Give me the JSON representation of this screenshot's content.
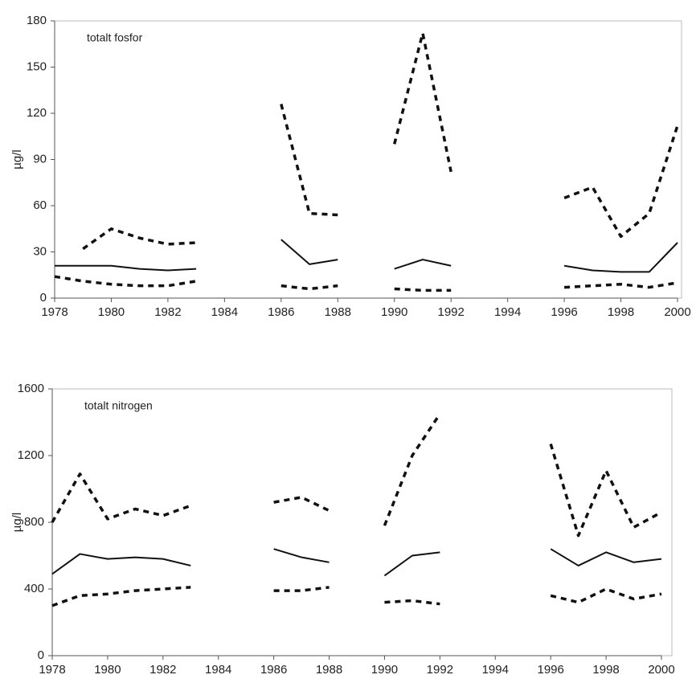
{
  "chart_data": [
    {
      "type": "line",
      "annotation": "totalt fosfor",
      "y_label": "µg/l",
      "x": [
        1978,
        1979,
        1980,
        1981,
        1982,
        1983,
        1984,
        1985,
        1986,
        1987,
        1988,
        1989,
        1990,
        1991,
        1992,
        1993,
        1994,
        1995,
        1996,
        1997,
        1998,
        1999,
        2000
      ],
      "xlim": [
        1978,
        2000
      ],
      "xticks": [
        1978,
        1980,
        1982,
        1984,
        1986,
        1988,
        1990,
        1992,
        1994,
        1996,
        1998,
        2000
      ],
      "ylim": [
        0,
        180
      ],
      "yticks": [
        0,
        30,
        60,
        90,
        120,
        150,
        180
      ],
      "series": [
        {
          "color": "#111",
          "dashed": true,
          "values": [
            null,
            32,
            45,
            39,
            35,
            36,
            null,
            null,
            126,
            55,
            54,
            null,
            100,
            172,
            82,
            null,
            null,
            null,
            65,
            72,
            40,
            55,
            112
          ]
        },
        {
          "color": "#111",
          "dashed": false,
          "values": [
            21,
            21,
            21,
            19,
            18,
            19,
            null,
            null,
            38,
            22,
            25,
            null,
            19,
            25,
            21,
            null,
            null,
            null,
            21,
            18,
            17,
            17,
            36
          ]
        },
        {
          "color": "#111",
          "dashed": true,
          "values": [
            14,
            11,
            9,
            8,
            8,
            11,
            null,
            null,
            8,
            6,
            8,
            null,
            6,
            5,
            5,
            null,
            null,
            null,
            7,
            8,
            9,
            7,
            10
          ]
        }
      ]
    },
    {
      "type": "line",
      "annotation": "totalt nitrogen",
      "y_label": "µg/l",
      "x": [
        1978,
        1979,
        1980,
        1981,
        1982,
        1983,
        1984,
        1985,
        1986,
        1987,
        1988,
        1989,
        1990,
        1991,
        1992,
        1993,
        1994,
        1995,
        1996,
        1997,
        1998,
        1999,
        2000
      ],
      "xlim": [
        1978,
        2000
      ],
      "xticks": [
        1978,
        1980,
        1982,
        1984,
        1986,
        1988,
        1990,
        1992,
        1994,
        1996,
        1998,
        2000
      ],
      "ylim": [
        0,
        1600
      ],
      "yticks": [
        0,
        400,
        800,
        1200,
        1600
      ],
      "series": [
        {
          "color": "#111",
          "dashed": true,
          "values": [
            800,
            1090,
            820,
            880,
            840,
            900,
            null,
            null,
            920,
            950,
            870,
            null,
            780,
            1200,
            1450,
            null,
            null,
            null,
            1270,
            720,
            1110,
            770,
            860
          ]
        },
        {
          "color": "#111",
          "dashed": false,
          "values": [
            490,
            610,
            580,
            590,
            580,
            540,
            null,
            null,
            640,
            590,
            560,
            null,
            480,
            600,
            620,
            null,
            null,
            null,
            640,
            540,
            620,
            560,
            580
          ]
        },
        {
          "color": "#111",
          "dashed": true,
          "values": [
            300,
            360,
            370,
            390,
            400,
            410,
            null,
            null,
            390,
            390,
            410,
            null,
            320,
            330,
            310,
            null,
            null,
            null,
            360,
            320,
            400,
            340,
            370
          ]
        }
      ]
    }
  ]
}
